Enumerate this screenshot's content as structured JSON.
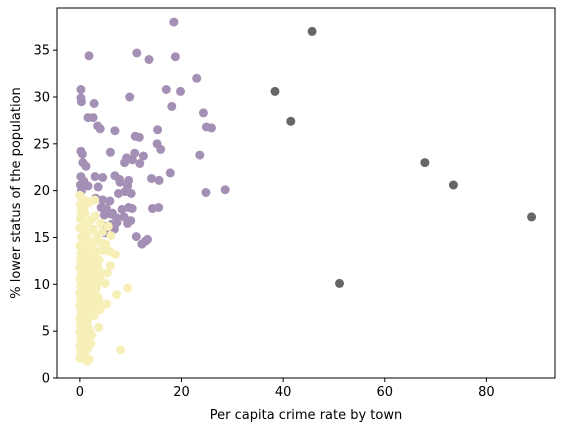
{
  "chart_data": {
    "type": "scatter",
    "title": "",
    "xlabel": "Per capita crime rate by town",
    "ylabel": "% lower status of the population",
    "xlim": [
      -4.5,
      93.5
    ],
    "ylim": [
      0,
      39.5
    ],
    "xticks": [
      0,
      20,
      40,
      60,
      80
    ],
    "yticks": [
      0,
      5,
      10,
      15,
      20,
      25,
      30,
      35
    ],
    "grid": false,
    "legend": "none",
    "series": [
      {
        "color": "#a48fb5",
        "points": [
          [
            18.5,
            38.0
          ],
          [
            1.8,
            34.4
          ],
          [
            11.2,
            34.7
          ],
          [
            13.6,
            34.0
          ],
          [
            18.8,
            34.3
          ],
          [
            23.0,
            32.0
          ],
          [
            17.0,
            30.8
          ],
          [
            19.8,
            30.6
          ],
          [
            0.2,
            30.8
          ],
          [
            0.2,
            29.9
          ],
          [
            0.3,
            29.5
          ],
          [
            2.8,
            29.3
          ],
          [
            9.8,
            30.0
          ],
          [
            18.1,
            29.0
          ],
          [
            24.3,
            28.3
          ],
          [
            1.6,
            27.8
          ],
          [
            2.6,
            27.8
          ],
          [
            3.5,
            26.9
          ],
          [
            4.0,
            26.6
          ],
          [
            6.9,
            26.4
          ],
          [
            15.3,
            26.5
          ],
          [
            24.9,
            26.8
          ],
          [
            25.9,
            26.7
          ],
          [
            10.9,
            25.8
          ],
          [
            11.7,
            25.7
          ],
          [
            15.2,
            25.0
          ],
          [
            15.9,
            24.4
          ],
          [
            0.2,
            24.2
          ],
          [
            0.5,
            23.9
          ],
          [
            6.0,
            24.1
          ],
          [
            9.2,
            23.5
          ],
          [
            10.8,
            24.0
          ],
          [
            12.5,
            23.7
          ],
          [
            23.6,
            23.8
          ],
          [
            0.6,
            23.0
          ],
          [
            1.2,
            22.6
          ],
          [
            8.8,
            23.0
          ],
          [
            10.3,
            23.3
          ],
          [
            11.8,
            22.9
          ],
          [
            0.2,
            21.5
          ],
          [
            0.8,
            21.0
          ],
          [
            3.0,
            21.5
          ],
          [
            4.5,
            21.4
          ],
          [
            6.9,
            21.6
          ],
          [
            7.8,
            21.2
          ],
          [
            9.6,
            21.1
          ],
          [
            14.1,
            21.3
          ],
          [
            15.6,
            21.1
          ],
          [
            17.8,
            21.9
          ],
          [
            0.1,
            20.6
          ],
          [
            0.9,
            20.7
          ],
          [
            1.6,
            20.5
          ],
          [
            3.6,
            20.4
          ],
          [
            7.9,
            20.9
          ],
          [
            9.4,
            20.5
          ],
          [
            24.8,
            19.8
          ],
          [
            28.6,
            20.1
          ],
          [
            0.3,
            20.0
          ],
          [
            3.1,
            19.2
          ],
          [
            4.5,
            19.0
          ],
          [
            5.9,
            18.9
          ],
          [
            7.6,
            19.7
          ],
          [
            8.9,
            19.9
          ],
          [
            10.1,
            19.7
          ],
          [
            4.2,
            18.2
          ],
          [
            5.2,
            18.1
          ],
          [
            6.1,
            17.5
          ],
          [
            8.3,
            18.0
          ],
          [
            9.6,
            18.2
          ],
          [
            10.3,
            18.1
          ],
          [
            14.3,
            18.1
          ],
          [
            15.5,
            18.2
          ],
          [
            4.8,
            17.4
          ],
          [
            6.4,
            17.6
          ],
          [
            7.2,
            17.1
          ],
          [
            8.7,
            17.2
          ],
          [
            10.0,
            16.8
          ],
          [
            6.2,
            16.4
          ],
          [
            7.3,
            16.6
          ],
          [
            9.4,
            16.5
          ],
          [
            5.0,
            16.2
          ],
          [
            6.8,
            15.9
          ],
          [
            11.1,
            15.1
          ],
          [
            12.9,
            14.6
          ],
          [
            13.3,
            14.8
          ],
          [
            12.2,
            14.3
          ],
          [
            4.9,
            15.5
          ]
        ]
      },
      {
        "color": "#f7efb8",
        "points": [
          [
            0.0,
            19.5
          ],
          [
            0.4,
            19.2
          ],
          [
            1.2,
            18.9
          ],
          [
            2.9,
            19.0
          ],
          [
            0.1,
            18.5
          ],
          [
            0.7,
            18.2
          ],
          [
            1.8,
            18.7
          ],
          [
            0.2,
            17.8
          ],
          [
            1.0,
            17.6
          ],
          [
            3.0,
            17.3
          ],
          [
            0.1,
            17.0
          ],
          [
            0.6,
            16.8
          ],
          [
            1.5,
            16.6
          ],
          [
            2.3,
            16.9
          ],
          [
            4.1,
            16.5
          ],
          [
            5.6,
            16.2
          ],
          [
            0.0,
            16.0
          ],
          [
            0.8,
            15.8
          ],
          [
            1.4,
            15.5
          ],
          [
            2.6,
            15.9
          ],
          [
            3.4,
            15.2
          ],
          [
            4.4,
            15.6
          ],
          [
            6.1,
            15.2
          ],
          [
            0.3,
            15.0
          ],
          [
            1.1,
            14.8
          ],
          [
            2.0,
            14.6
          ],
          [
            3.1,
            14.7
          ],
          [
            4.0,
            14.5
          ],
          [
            5.1,
            14.3
          ],
          [
            0.0,
            14.1
          ],
          [
            0.7,
            13.9
          ],
          [
            1.6,
            13.7
          ],
          [
            2.5,
            13.8
          ],
          [
            3.3,
            13.5
          ],
          [
            4.6,
            13.6
          ],
          [
            5.9,
            13.5
          ],
          [
            7.0,
            13.2
          ],
          [
            0.2,
            13.2
          ],
          [
            1.0,
            13.0
          ],
          [
            1.9,
            12.8
          ],
          [
            2.8,
            12.9
          ],
          [
            3.8,
            12.6
          ],
          [
            0.1,
            12.5
          ],
          [
            0.9,
            12.3
          ],
          [
            1.7,
            12.1
          ],
          [
            2.6,
            12.2
          ],
          [
            3.5,
            12.0
          ],
          [
            6.0,
            12.0
          ],
          [
            0.0,
            11.8
          ],
          [
            0.6,
            11.6
          ],
          [
            1.4,
            11.5
          ],
          [
            2.2,
            11.7
          ],
          [
            3.0,
            11.4
          ],
          [
            4.1,
            11.3
          ],
          [
            5.4,
            11.2
          ],
          [
            0.3,
            11.1
          ],
          [
            1.2,
            10.9
          ],
          [
            2.0,
            10.8
          ],
          [
            2.9,
            10.6
          ],
          [
            4.0,
            10.5
          ],
          [
            0.0,
            10.5
          ],
          [
            0.8,
            10.3
          ],
          [
            1.7,
            10.1
          ],
          [
            2.6,
            10.2
          ],
          [
            3.3,
            10.0
          ],
          [
            5.0,
            10.1
          ],
          [
            0.2,
            9.8
          ],
          [
            1.1,
            9.6
          ],
          [
            2.1,
            9.4
          ],
          [
            3.2,
            9.5
          ],
          [
            9.4,
            9.6
          ],
          [
            7.2,
            8.9
          ],
          [
            0.0,
            9.1
          ],
          [
            0.7,
            8.9
          ],
          [
            1.6,
            8.7
          ],
          [
            2.5,
            8.8
          ],
          [
            3.6,
            8.6
          ],
          [
            0.1,
            8.4
          ],
          [
            1.0,
            8.2
          ],
          [
            1.9,
            8.0
          ],
          [
            2.8,
            8.1
          ],
          [
            4.2,
            7.9
          ],
          [
            5.3,
            7.9
          ],
          [
            0.0,
            7.7
          ],
          [
            0.8,
            7.5
          ],
          [
            1.6,
            7.3
          ],
          [
            2.4,
            7.4
          ],
          [
            4.0,
            7.3
          ],
          [
            0.2,
            7.0
          ],
          [
            1.1,
            6.8
          ],
          [
            2.0,
            6.6
          ],
          [
            2.9,
            6.7
          ],
          [
            0.0,
            6.3
          ],
          [
            0.7,
            6.1
          ],
          [
            1.5,
            5.9
          ],
          [
            0.1,
            5.6
          ],
          [
            0.9,
            5.4
          ],
          [
            1.8,
            5.2
          ],
          [
            3.7,
            5.4
          ],
          [
            0.0,
            4.9
          ],
          [
            0.6,
            4.7
          ],
          [
            1.4,
            4.5
          ],
          [
            2.3,
            4.6
          ],
          [
            0.2,
            4.2
          ],
          [
            1.0,
            4.0
          ],
          [
            2.2,
            3.7
          ],
          [
            0.0,
            3.5
          ],
          [
            0.7,
            3.3
          ],
          [
            1.5,
            3.1
          ],
          [
            0.1,
            2.8
          ],
          [
            0.9,
            2.6
          ],
          [
            0.0,
            2.1
          ],
          [
            1.8,
            2.0
          ],
          [
            1.4,
            1.8
          ],
          [
            8.0,
            3.0
          ]
        ]
      },
      {
        "color": "#666666",
        "points": [
          [
            45.7,
            37.0
          ],
          [
            38.4,
            30.6
          ],
          [
            41.5,
            27.4
          ],
          [
            67.9,
            23.0
          ],
          [
            73.5,
            20.6
          ],
          [
            88.9,
            17.2
          ],
          [
            51.1,
            10.1
          ]
        ]
      }
    ]
  }
}
